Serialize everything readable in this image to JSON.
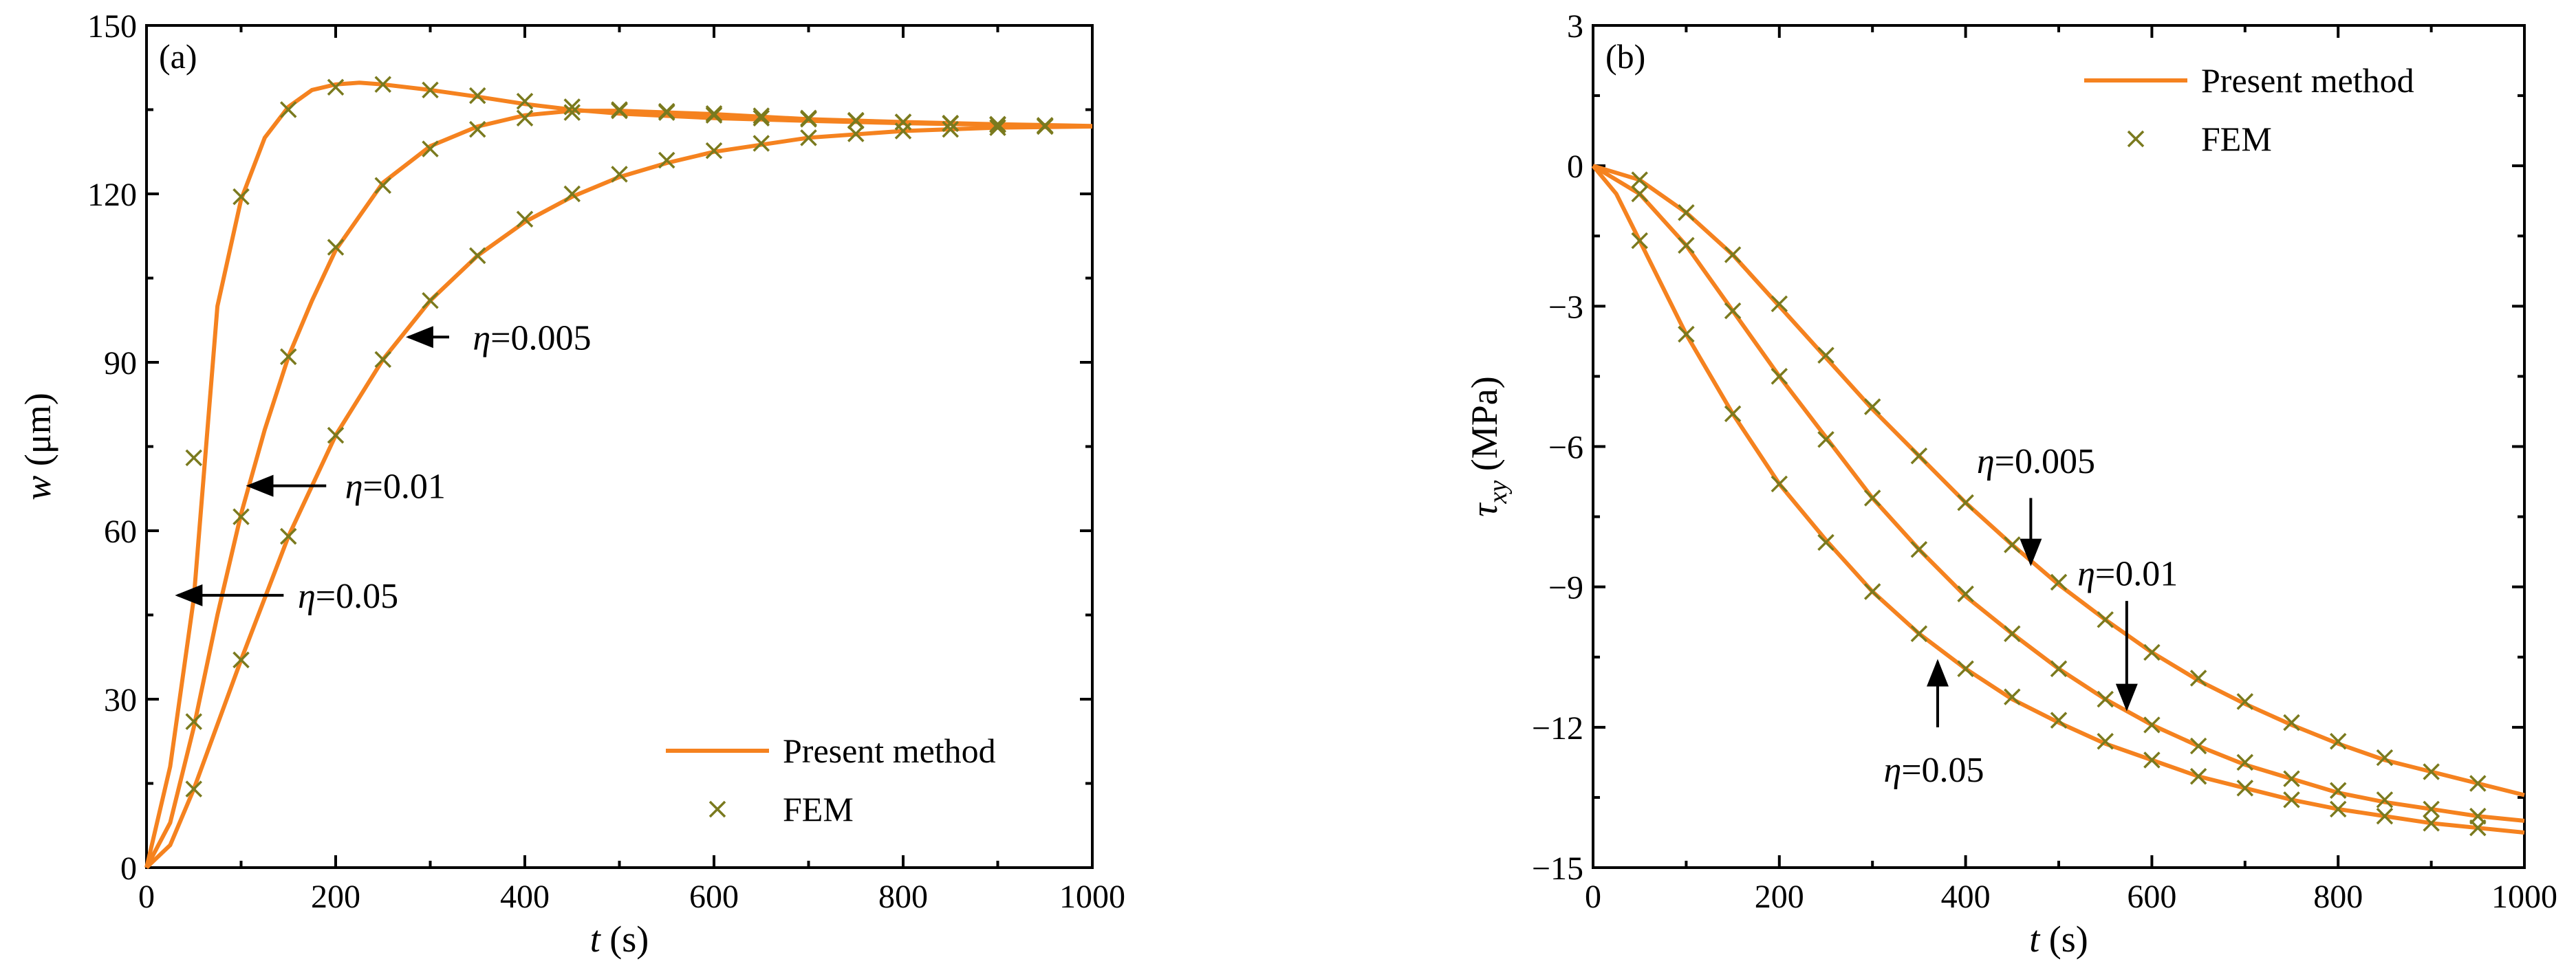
{
  "colors": {
    "curve": "#F5821F",
    "fem": "#7A7A1E",
    "axis": "#000000"
  },
  "chart_data": [
    {
      "type": "line",
      "panel_label": "(a)",
      "xlabel_var": "t",
      "xlabel_unit": " (s)",
      "ylabel_var": "w",
      "ylabel_unit": " (μm)",
      "xlim": [
        0,
        1000
      ],
      "ylim": [
        0,
        150
      ],
      "xticks": [
        0,
        200,
        400,
        600,
        800,
        1000
      ],
      "yticks": [
        0,
        30,
        60,
        90,
        120,
        150
      ],
      "legend": {
        "placement": "bottom-right",
        "line_label": "Present method",
        "marker_label": "FEM"
      },
      "series": [
        {
          "name": "η=0.05",
          "line": [
            [
              0,
              0
            ],
            [
              25,
              18
            ],
            [
              50,
              48
            ],
            [
              75,
              100
            ],
            [
              100,
              119
            ],
            [
              125,
              130
            ],
            [
              150,
              135.5
            ],
            [
              175,
              138.5
            ],
            [
              200,
              139.5
            ],
            [
              225,
              139.8
            ],
            [
              250,
              139.5
            ],
            [
              300,
              138.5
            ],
            [
              350,
              137.3
            ],
            [
              400,
              136
            ],
            [
              450,
              135
            ],
            [
              500,
              134.3
            ],
            [
              600,
              133.5
            ],
            [
              700,
              133
            ],
            [
              800,
              132.6
            ],
            [
              900,
              132.3
            ],
            [
              1000,
              132
            ]
          ],
          "fem": [
            [
              50,
              73
            ],
            [
              100,
              119.5
            ],
            [
              150,
              135
            ],
            [
              200,
              139
            ],
            [
              250,
              139.5
            ],
            [
              300,
              138.5
            ],
            [
              350,
              137.5
            ],
            [
              400,
              136.5
            ],
            [
              450,
              135.5
            ],
            [
              500,
              135
            ],
            [
              550,
              134.5
            ],
            [
              600,
              134
            ],
            [
              650,
              133.5
            ],
            [
              700,
              133.3
            ],
            [
              750,
              133
            ],
            [
              800,
              132.8
            ],
            [
              850,
              132.6
            ],
            [
              900,
              132.4
            ],
            [
              950,
              132.2
            ]
          ]
        },
        {
          "name": "η=0.01",
          "line": [
            [
              0,
              0
            ],
            [
              25,
              8
            ],
            [
              50,
              25
            ],
            [
              75,
              45
            ],
            [
              100,
              63
            ],
            [
              125,
              78
            ],
            [
              150,
              91
            ],
            [
              175,
              101
            ],
            [
              200,
              110
            ],
            [
              250,
              122
            ],
            [
              300,
              128.5
            ],
            [
              350,
              132
            ],
            [
              400,
              134
            ],
            [
              450,
              134.8
            ],
            [
              500,
              134.8
            ],
            [
              600,
              134.2
            ],
            [
              700,
              133.3
            ],
            [
              800,
              132.8
            ],
            [
              900,
              132.4
            ],
            [
              1000,
              132.1
            ]
          ],
          "fem": [
            [
              50,
              26
            ],
            [
              100,
              62.5
            ],
            [
              150,
              91
            ],
            [
              200,
              110.5
            ],
            [
              250,
              121.5
            ],
            [
              300,
              128
            ],
            [
              350,
              131.5
            ],
            [
              400,
              133.5
            ],
            [
              450,
              134.5
            ],
            [
              500,
              134.8
            ],
            [
              550,
              134.7
            ],
            [
              600,
              134.3
            ],
            [
              650,
              133.9
            ],
            [
              700,
              133.5
            ],
            [
              750,
              133.1
            ],
            [
              800,
              132.8
            ],
            [
              850,
              132.5
            ],
            [
              900,
              132.3
            ],
            [
              950,
              132.1
            ]
          ]
        },
        {
          "name": "η=0.005",
          "line": [
            [
              0,
              0
            ],
            [
              25,
              4
            ],
            [
              50,
              14
            ],
            [
              100,
              37
            ],
            [
              150,
              59
            ],
            [
              200,
              77
            ],
            [
              250,
              90.5
            ],
            [
              300,
              101
            ],
            [
              350,
              109
            ],
            [
              400,
              115
            ],
            [
              450,
              119.5
            ],
            [
              500,
              123
            ],
            [
              550,
              125.5
            ],
            [
              600,
              127.5
            ],
            [
              700,
              130
            ],
            [
              800,
              131.2
            ],
            [
              900,
              131.8
            ],
            [
              1000,
              132
            ]
          ],
          "fem": [
            [
              50,
              14
            ],
            [
              100,
              37
            ],
            [
              150,
              59
            ],
            [
              200,
              77
            ],
            [
              250,
              90.5
            ],
            [
              300,
              101
            ],
            [
              350,
              109
            ],
            [
              400,
              115.5
            ],
            [
              450,
              120
            ],
            [
              500,
              123.5
            ],
            [
              550,
              126
            ],
            [
              600,
              127.7
            ],
            [
              650,
              129
            ],
            [
              700,
              130
            ],
            [
              750,
              130.7
            ],
            [
              800,
              131.2
            ],
            [
              850,
              131.5
            ],
            [
              900,
              131.8
            ],
            [
              950,
              132
            ]
          ]
        }
      ],
      "annotations": [
        {
          "label": "η=0.005",
          "text": "=0.005",
          "tip": [
            277,
            94.5
          ],
          "tail": [
            320,
            94.5
          ],
          "text_at": [
            345,
            94.5
          ]
        },
        {
          "label": "η=0.01",
          "text": "=0.01",
          "tip": [
            108,
            68
          ],
          "tail": [
            190,
            68
          ],
          "text_at": [
            210,
            68
          ]
        },
        {
          "label": "η=0.05",
          "text": "=0.05",
          "tip": [
            33,
            48.5
          ],
          "tail": [
            145,
            48.5
          ],
          "text_at": [
            160,
            48.5
          ]
        }
      ]
    },
    {
      "type": "line",
      "panel_label": "(b)",
      "xlabel_var": "t",
      "xlabel_unit": " (s)",
      "ylabel_var": "τ",
      "ylabel_sub": "xy",
      "ylabel_unit": " (MPa)",
      "xlim": [
        0,
        1000
      ],
      "ylim": [
        -15,
        3
      ],
      "xticks": [
        0,
        200,
        400,
        600,
        800,
        1000
      ],
      "yticks": [
        -15,
        -12,
        -9,
        -6,
        -3,
        0,
        3
      ],
      "legend": {
        "placement": "top-right",
        "line_label": "Present method",
        "marker_label": "FEM"
      },
      "series": [
        {
          "name": "η=0.005",
          "line": [
            [
              0,
              0
            ],
            [
              50,
              -0.3
            ],
            [
              100,
              -1
            ],
            [
              150,
              -1.9
            ],
            [
              200,
              -3
            ],
            [
              250,
              -4.1
            ],
            [
              300,
              -5.2
            ],
            [
              350,
              -6.2
            ],
            [
              400,
              -7.2
            ],
            [
              450,
              -8.1
            ],
            [
              500,
              -8.95
            ],
            [
              550,
              -9.7
            ],
            [
              600,
              -10.4
            ],
            [
              650,
              -11
            ],
            [
              700,
              -11.5
            ],
            [
              750,
              -11.95
            ],
            [
              800,
              -12.35
            ],
            [
              850,
              -12.7
            ],
            [
              900,
              -12.95
            ],
            [
              950,
              -13.2
            ],
            [
              1000,
              -13.45
            ]
          ],
          "fem": [
            [
              50,
              -0.3
            ],
            [
              100,
              -1
            ],
            [
              150,
              -1.9
            ],
            [
              200,
              -2.95
            ],
            [
              250,
              -4.05
            ],
            [
              300,
              -5.15
            ],
            [
              350,
              -6.2
            ],
            [
              400,
              -7.2
            ],
            [
              450,
              -8.1
            ],
            [
              500,
              -8.9
            ],
            [
              550,
              -9.7
            ],
            [
              600,
              -10.4
            ],
            [
              650,
              -10.95
            ],
            [
              700,
              -11.45
            ],
            [
              750,
              -11.9
            ],
            [
              800,
              -12.3
            ],
            [
              850,
              -12.65
            ],
            [
              900,
              -12.95
            ],
            [
              950,
              -13.2
            ]
          ]
        },
        {
          "name": "η=0.01",
          "line": [
            [
              0,
              0
            ],
            [
              50,
              -0.6
            ],
            [
              100,
              -1.7
            ],
            [
              150,
              -3.1
            ],
            [
              200,
              -4.5
            ],
            [
              250,
              -5.8
            ],
            [
              300,
              -7.1
            ],
            [
              350,
              -8.2
            ],
            [
              400,
              -9.2
            ],
            [
              450,
              -10
            ],
            [
              500,
              -10.75
            ],
            [
              550,
              -11.4
            ],
            [
              600,
              -11.95
            ],
            [
              650,
              -12.4
            ],
            [
              700,
              -12.8
            ],
            [
              750,
              -13.1
            ],
            [
              800,
              -13.4
            ],
            [
              850,
              -13.6
            ],
            [
              900,
              -13.75
            ],
            [
              950,
              -13.9
            ],
            [
              1000,
              -14
            ]
          ],
          "fem": [
            [
              50,
              -0.6
            ],
            [
              100,
              -1.7
            ],
            [
              150,
              -3.1
            ],
            [
              200,
              -4.5
            ],
            [
              250,
              -5.85
            ],
            [
              300,
              -7.1
            ],
            [
              350,
              -8.2
            ],
            [
              400,
              -9.15
            ],
            [
              450,
              -10
            ],
            [
              500,
              -10.75
            ],
            [
              550,
              -11.4
            ],
            [
              600,
              -11.95
            ],
            [
              650,
              -12.4
            ],
            [
              700,
              -12.75
            ],
            [
              750,
              -13.1
            ],
            [
              800,
              -13.35
            ],
            [
              850,
              -13.55
            ],
            [
              900,
              -13.75
            ],
            [
              950,
              -13.9
            ]
          ]
        },
        {
          "name": "η=0.05",
          "line": [
            [
              0,
              0
            ],
            [
              25,
              -0.6
            ],
            [
              50,
              -1.6
            ],
            [
              100,
              -3.6
            ],
            [
              150,
              -5.3
            ],
            [
              200,
              -6.8
            ],
            [
              250,
              -8
            ],
            [
              300,
              -9.1
            ],
            [
              350,
              -10
            ],
            [
              400,
              -10.75
            ],
            [
              450,
              -11.4
            ],
            [
              500,
              -11.9
            ],
            [
              550,
              -12.35
            ],
            [
              600,
              -12.7
            ],
            [
              650,
              -13.05
            ],
            [
              700,
              -13.3
            ],
            [
              750,
              -13.55
            ],
            [
              800,
              -13.75
            ],
            [
              850,
              -13.9
            ],
            [
              900,
              -14.05
            ],
            [
              950,
              -14.15
            ],
            [
              1000,
              -14.25
            ]
          ],
          "fem": [
            [
              50,
              -1.6
            ],
            [
              100,
              -3.6
            ],
            [
              150,
              -5.3
            ],
            [
              200,
              -6.8
            ],
            [
              250,
              -8.05
            ],
            [
              300,
              -9.1
            ],
            [
              350,
              -10
            ],
            [
              400,
              -10.75
            ],
            [
              450,
              -11.35
            ],
            [
              500,
              -11.85
            ],
            [
              550,
              -12.3
            ],
            [
              600,
              -12.7
            ],
            [
              650,
              -13.05
            ],
            [
              700,
              -13.3
            ],
            [
              750,
              -13.55
            ],
            [
              800,
              -13.75
            ],
            [
              850,
              -13.9
            ],
            [
              900,
              -14.05
            ],
            [
              950,
              -14.15
            ]
          ]
        }
      ],
      "annotations": [
        {
          "label": "η=0.005",
          "text": "=0.005",
          "tip": [
            470,
            -8.5
          ],
          "tail": [
            470,
            -7.1
          ],
          "text_at": [
            412,
            -6.3
          ]
        },
        {
          "label": "η=0.01",
          "text": "=0.01",
          "tip": [
            573,
            -11.6
          ],
          "tail": [
            573,
            -9.3
          ],
          "text_at": [
            520,
            -8.7
          ]
        },
        {
          "label": "η=0.05",
          "text": "=0.05",
          "tip": [
            370,
            -10.6
          ],
          "tail": [
            370,
            -12
          ],
          "text_at": [
            312,
            -12.9
          ]
        }
      ]
    }
  ]
}
